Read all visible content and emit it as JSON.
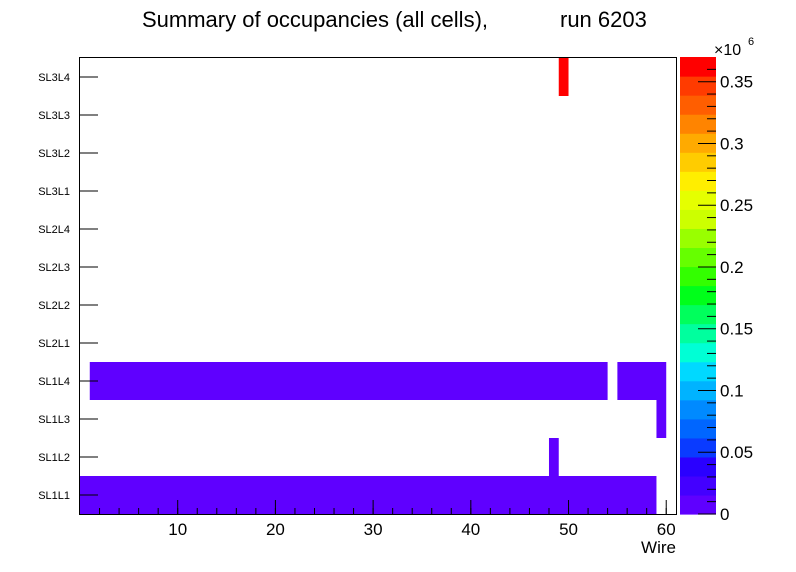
{
  "chart_data": {
    "type": "heatmap",
    "title": "Summary of occupancies (all cells),",
    "run_label": "run 6203",
    "xlabel": "Wire",
    "ylabel": "",
    "xlim": [
      0,
      61
    ],
    "x_ticks": [
      10,
      20,
      30,
      40,
      50,
      60
    ],
    "y_categories": [
      "SL1L1",
      "SL1L2",
      "SL1L3",
      "SL1L4",
      "SL2L1",
      "SL2L2",
      "SL2L3",
      "SL2L4",
      "SL3L1",
      "SL3L2",
      "SL3L3",
      "SL3L4"
    ],
    "z_range": [
      0,
      0.37
    ],
    "z_ticks": [
      0,
      0.05,
      0.1,
      0.15,
      0.2,
      0.25,
      0.3,
      0.35
    ],
    "z_tick_labels": [
      "0",
      "0.05",
      "0.1",
      "0.15",
      "0.2",
      "0.25",
      "0.3",
      "0.35"
    ],
    "z_multiplier": "×10",
    "z_exponent": "6",
    "palette": [
      "#5f00ff",
      "#4300ff",
      "#2a00ff",
      "#0a3bff",
      "#0066ff",
      "#008aff",
      "#00b3ff",
      "#00d9ff",
      "#00ffd5",
      "#00ff9e",
      "#00ff5c",
      "#00ff1a",
      "#33ff00",
      "#66ff00",
      "#99ff00",
      "#ccff00",
      "#e5ff00",
      "#ffee00",
      "#ffcc00",
      "#ffaa00",
      "#ff8400",
      "#ff5e00",
      "#ff3b00",
      "#ff0000"
    ],
    "cells": [
      {
        "layer": "SL1L1",
        "x_start": 0,
        "x_end": 59,
        "value": 0.005
      },
      {
        "layer": "SL1L2",
        "x_start": 48,
        "x_end": 49,
        "value": 0.005
      },
      {
        "layer": "SL1L3",
        "x_start": 59,
        "x_end": 60,
        "value": 0.005
      },
      {
        "layer": "SL1L4",
        "x_start": 1,
        "x_end": 54,
        "value": 0.005
      },
      {
        "layer": "SL1L4",
        "x_start": 55,
        "x_end": 60,
        "value": 0.005
      },
      {
        "layer": "SL3L4",
        "x_start": 49,
        "x_end": 50,
        "value": 0.36
      }
    ]
  }
}
